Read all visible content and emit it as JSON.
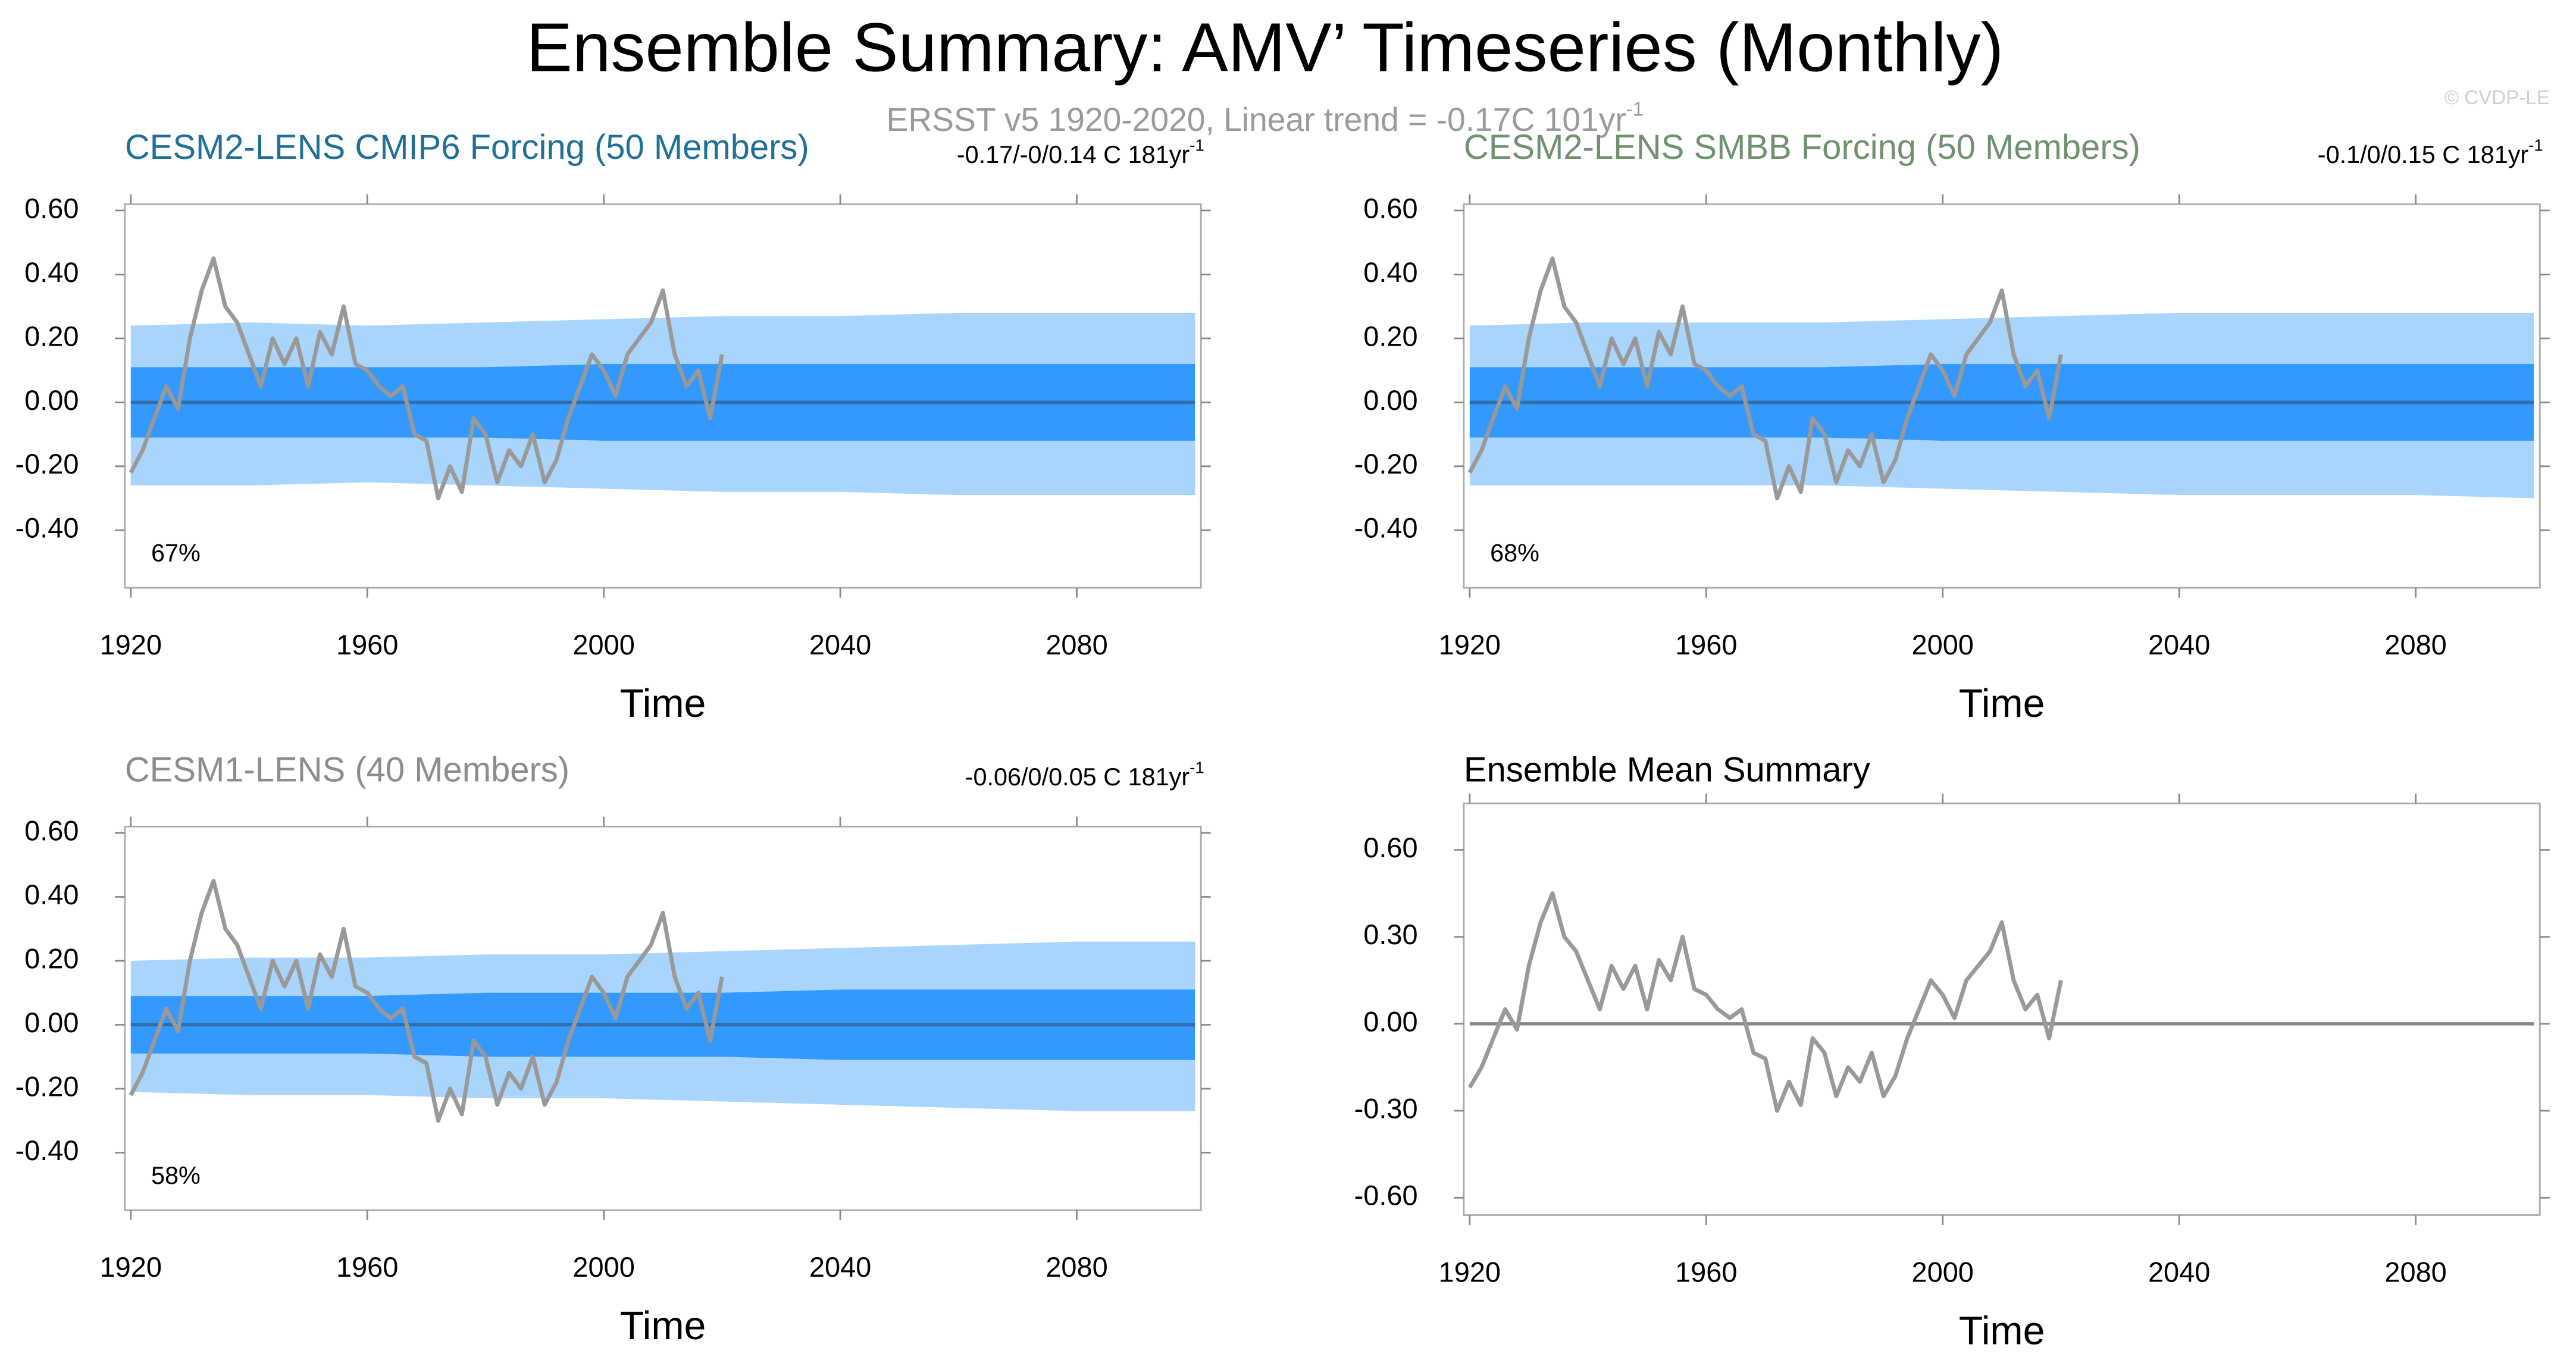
{
  "header": {
    "title": "Ensemble Summary: AMV’ Timeseries (Monthly)",
    "subtitle": "ERSST v5 1920-2020, Linear trend = -0.17C 101yr",
    "subtitle_exp": "-1",
    "credit": "© CVDP-LE"
  },
  "chart_data": [
    {
      "type": "line",
      "title": "CESM2-LENS CMIP6 Forcing (50 Members)",
      "title_color": "#1f6f96",
      "trend_label": "-0.17/-0/0.14 C 181yr",
      "trend_exp": "-1",
      "percent_label": "67%",
      "xlabel": "Time",
      "xlim": [
        1919,
        2101
      ],
      "xticks": [
        1920,
        1960,
        2000,
        2040,
        2080
      ],
      "ylim": [
        -0.58,
        0.62
      ],
      "yticks": [
        {
          "value": -0.4,
          "label": "-0.40"
        },
        {
          "value": -0.2,
          "label": "-0.20"
        },
        {
          "value": 0,
          "label": "0.00"
        },
        {
          "value": 0.2,
          "label": "0.20"
        },
        {
          "value": 0.4,
          "label": "0.40"
        },
        {
          "value": 0.6,
          "label": "0.60"
        }
      ],
      "bands": {
        "x": [
          1920,
          1940,
          1960,
          1980,
          2000,
          2020,
          2040,
          2060,
          2080,
          2100
        ],
        "outer_color": "#a9d4fb",
        "inner_color": "#3399ff",
        "outer_upper": [
          0.24,
          0.25,
          0.24,
          0.25,
          0.26,
          0.27,
          0.27,
          0.28,
          0.28,
          0.28
        ],
        "outer_lower": [
          -0.26,
          -0.26,
          -0.25,
          -0.26,
          -0.27,
          -0.28,
          -0.28,
          -0.29,
          -0.29,
          -0.29
        ],
        "inner_upper": [
          0.11,
          0.11,
          0.11,
          0.11,
          0.12,
          0.12,
          0.12,
          0.12,
          0.12,
          0.12
        ],
        "inner_lower": [
          -0.11,
          -0.11,
          -0.11,
          -0.11,
          -0.12,
          -0.12,
          -0.12,
          -0.12,
          -0.12,
          -0.12
        ]
      },
      "ensemble_mean": {
        "x": [
          1920,
          2100
        ],
        "values": [
          0,
          0
        ],
        "color": "#2f6ea8"
      },
      "observed": {
        "color": "#999999",
        "x": [
          1920,
          1922,
          1924,
          1926,
          1928,
          1930,
          1932,
          1934,
          1936,
          1938,
          1940,
          1942,
          1944,
          1946,
          1948,
          1950,
          1952,
          1954,
          1956,
          1958,
          1960,
          1962,
          1964,
          1966,
          1968,
          1970,
          1972,
          1974,
          1976,
          1978,
          1980,
          1982,
          1984,
          1986,
          1988,
          1990,
          1992,
          1994,
          1996,
          1998,
          2000,
          2002,
          2004,
          2006,
          2008,
          2010,
          2012,
          2014,
          2016,
          2018,
          2020
        ],
        "values": [
          -0.22,
          -0.15,
          -0.05,
          0.05,
          -0.02,
          0.2,
          0.35,
          0.45,
          0.3,
          0.25,
          0.15,
          0.05,
          0.2,
          0.12,
          0.2,
          0.05,
          0.22,
          0.15,
          0.3,
          0.12,
          0.1,
          0.05,
          0.02,
          0.05,
          -0.1,
          -0.12,
          -0.3,
          -0.2,
          -0.28,
          -0.05,
          -0.1,
          -0.25,
          -0.15,
          -0.2,
          -0.1,
          -0.25,
          -0.18,
          -0.05,
          0.05,
          0.15,
          0.1,
          0.02,
          0.15,
          0.2,
          0.25,
          0.35,
          0.15,
          0.05,
          0.1,
          -0.05,
          0.15
        ]
      }
    },
    {
      "type": "line",
      "title": "CESM2-LENS SMBB Forcing (50 Members)",
      "title_color": "#6f916f",
      "trend_label": "-0.1/0/0.15 C 181yr",
      "trend_exp": "-1",
      "percent_label": "68%",
      "xlabel": "Time",
      "xlim": [
        1919,
        2101
      ],
      "xticks": [
        1920,
        1960,
        2000,
        2040,
        2080
      ],
      "ylim": [
        -0.58,
        0.62
      ],
      "yticks": [
        {
          "value": -0.4,
          "label": "-0.40"
        },
        {
          "value": -0.2,
          "label": "-0.20"
        },
        {
          "value": 0,
          "label": "0.00"
        },
        {
          "value": 0.2,
          "label": "0.20"
        },
        {
          "value": 0.4,
          "label": "0.40"
        },
        {
          "value": 0.6,
          "label": "0.60"
        }
      ],
      "bands": {
        "x": [
          1920,
          1940,
          1960,
          1980,
          2000,
          2020,
          2040,
          2060,
          2080,
          2100
        ],
        "outer_color": "#a9d4fb",
        "inner_color": "#3399ff",
        "outer_upper": [
          0.24,
          0.25,
          0.25,
          0.25,
          0.26,
          0.27,
          0.28,
          0.28,
          0.28,
          0.28
        ],
        "outer_lower": [
          -0.26,
          -0.26,
          -0.26,
          -0.26,
          -0.27,
          -0.28,
          -0.29,
          -0.29,
          -0.29,
          -0.3
        ],
        "inner_upper": [
          0.11,
          0.11,
          0.11,
          0.11,
          0.12,
          0.12,
          0.12,
          0.12,
          0.12,
          0.12
        ],
        "inner_lower": [
          -0.11,
          -0.11,
          -0.11,
          -0.11,
          -0.12,
          -0.12,
          -0.12,
          -0.12,
          -0.12,
          -0.12
        ]
      },
      "ensemble_mean": {
        "x": [
          1920,
          2100
        ],
        "values": [
          0,
          0
        ],
        "color": "#2f6ea8"
      },
      "observed": {
        "color": "#999999",
        "x": [
          1920,
          1922,
          1924,
          1926,
          1928,
          1930,
          1932,
          1934,
          1936,
          1938,
          1940,
          1942,
          1944,
          1946,
          1948,
          1950,
          1952,
          1954,
          1956,
          1958,
          1960,
          1962,
          1964,
          1966,
          1968,
          1970,
          1972,
          1974,
          1976,
          1978,
          1980,
          1982,
          1984,
          1986,
          1988,
          1990,
          1992,
          1994,
          1996,
          1998,
          2000,
          2002,
          2004,
          2006,
          2008,
          2010,
          2012,
          2014,
          2016,
          2018,
          2020
        ],
        "values": [
          -0.22,
          -0.15,
          -0.05,
          0.05,
          -0.02,
          0.2,
          0.35,
          0.45,
          0.3,
          0.25,
          0.15,
          0.05,
          0.2,
          0.12,
          0.2,
          0.05,
          0.22,
          0.15,
          0.3,
          0.12,
          0.1,
          0.05,
          0.02,
          0.05,
          -0.1,
          -0.12,
          -0.3,
          -0.2,
          -0.28,
          -0.05,
          -0.1,
          -0.25,
          -0.15,
          -0.2,
          -0.1,
          -0.25,
          -0.18,
          -0.05,
          0.05,
          0.15,
          0.1,
          0.02,
          0.15,
          0.2,
          0.25,
          0.35,
          0.15,
          0.05,
          0.1,
          -0.05,
          0.15
        ]
      }
    },
    {
      "type": "line",
      "title": "CESM1-LENS (40 Members)",
      "title_color": "#8c8c8c",
      "trend_label": "-0.06/0/0.05 C 181yr",
      "trend_exp": "-1",
      "percent_label": "58%",
      "xlabel": "Time",
      "xlim": [
        1919,
        2101
      ],
      "xticks": [
        1920,
        1960,
        2000,
        2040,
        2080
      ],
      "ylim": [
        -0.58,
        0.62
      ],
      "yticks": [
        {
          "value": -0.4,
          "label": "-0.40"
        },
        {
          "value": -0.2,
          "label": "-0.20"
        },
        {
          "value": 0,
          "label": "0.00"
        },
        {
          "value": 0.2,
          "label": "0.20"
        },
        {
          "value": 0.4,
          "label": "0.40"
        },
        {
          "value": 0.6,
          "label": "0.60"
        }
      ],
      "bands": {
        "x": [
          1920,
          1940,
          1960,
          1980,
          2000,
          2020,
          2040,
          2060,
          2080,
          2100
        ],
        "outer_color": "#a9d4fb",
        "inner_color": "#3399ff",
        "outer_upper": [
          0.2,
          0.21,
          0.21,
          0.22,
          0.22,
          0.23,
          0.24,
          0.25,
          0.26,
          0.26
        ],
        "outer_lower": [
          -0.21,
          -0.22,
          -0.22,
          -0.23,
          -0.23,
          -0.24,
          -0.25,
          -0.26,
          -0.27,
          -0.27
        ],
        "inner_upper": [
          0.09,
          0.09,
          0.09,
          0.1,
          0.1,
          0.1,
          0.11,
          0.11,
          0.11,
          0.11
        ],
        "inner_lower": [
          -0.09,
          -0.09,
          -0.09,
          -0.1,
          -0.1,
          -0.1,
          -0.11,
          -0.11,
          -0.11,
          -0.11
        ]
      },
      "ensemble_mean": {
        "x": [
          1920,
          2100
        ],
        "values": [
          0,
          0
        ],
        "color": "#2f6ea8"
      },
      "observed": {
        "color": "#999999",
        "x": [
          1920,
          1922,
          1924,
          1926,
          1928,
          1930,
          1932,
          1934,
          1936,
          1938,
          1940,
          1942,
          1944,
          1946,
          1948,
          1950,
          1952,
          1954,
          1956,
          1958,
          1960,
          1962,
          1964,
          1966,
          1968,
          1970,
          1972,
          1974,
          1976,
          1978,
          1980,
          1982,
          1984,
          1986,
          1988,
          1990,
          1992,
          1994,
          1996,
          1998,
          2000,
          2002,
          2004,
          2006,
          2008,
          2010,
          2012,
          2014,
          2016,
          2018,
          2020
        ],
        "values": [
          -0.22,
          -0.15,
          -0.05,
          0.05,
          -0.02,
          0.2,
          0.35,
          0.45,
          0.3,
          0.25,
          0.15,
          0.05,
          0.2,
          0.12,
          0.2,
          0.05,
          0.22,
          0.15,
          0.3,
          0.12,
          0.1,
          0.05,
          0.02,
          0.05,
          -0.1,
          -0.12,
          -0.3,
          -0.2,
          -0.28,
          -0.05,
          -0.1,
          -0.25,
          -0.15,
          -0.2,
          -0.1,
          -0.25,
          -0.18,
          -0.05,
          0.05,
          0.15,
          0.1,
          0.02,
          0.15,
          0.2,
          0.25,
          0.35,
          0.15,
          0.05,
          0.1,
          -0.05,
          0.15
        ]
      }
    },
    {
      "type": "line",
      "title": "Ensemble Mean Summary",
      "title_color": "#000000",
      "xlabel": "Time",
      "xlim": [
        1919,
        2101
      ],
      "xticks": [
        1920,
        1960,
        2000,
        2040,
        2080
      ],
      "ylim": [
        -0.66,
        0.76
      ],
      "yticks": [
        {
          "value": -0.6,
          "label": "-0.60"
        },
        {
          "value": -0.3,
          "label": "-0.30"
        },
        {
          "value": 0,
          "label": "0.00"
        },
        {
          "value": 0.3,
          "label": "0.30"
        },
        {
          "value": 0.6,
          "label": "0.60"
        }
      ],
      "ensemble_mean": {
        "x": [
          1920,
          2100
        ],
        "values": [
          0,
          0
        ],
        "color": "#888888"
      },
      "observed": {
        "color": "#999999",
        "x": [
          1920,
          1922,
          1924,
          1926,
          1928,
          1930,
          1932,
          1934,
          1936,
          1938,
          1940,
          1942,
          1944,
          1946,
          1948,
          1950,
          1952,
          1954,
          1956,
          1958,
          1960,
          1962,
          1964,
          1966,
          1968,
          1970,
          1972,
          1974,
          1976,
          1978,
          1980,
          1982,
          1984,
          1986,
          1988,
          1990,
          1992,
          1994,
          1996,
          1998,
          2000,
          2002,
          2004,
          2006,
          2008,
          2010,
          2012,
          2014,
          2016,
          2018,
          2020
        ],
        "values": [
          -0.22,
          -0.15,
          -0.05,
          0.05,
          -0.02,
          0.2,
          0.35,
          0.45,
          0.3,
          0.25,
          0.15,
          0.05,
          0.2,
          0.12,
          0.2,
          0.05,
          0.22,
          0.15,
          0.3,
          0.12,
          0.1,
          0.05,
          0.02,
          0.05,
          -0.1,
          -0.12,
          -0.3,
          -0.2,
          -0.28,
          -0.05,
          -0.1,
          -0.25,
          -0.15,
          -0.2,
          -0.1,
          -0.25,
          -0.18,
          -0.05,
          0.05,
          0.15,
          0.1,
          0.02,
          0.15,
          0.2,
          0.25,
          0.35,
          0.15,
          0.05,
          0.1,
          -0.05,
          0.15
        ]
      }
    }
  ]
}
